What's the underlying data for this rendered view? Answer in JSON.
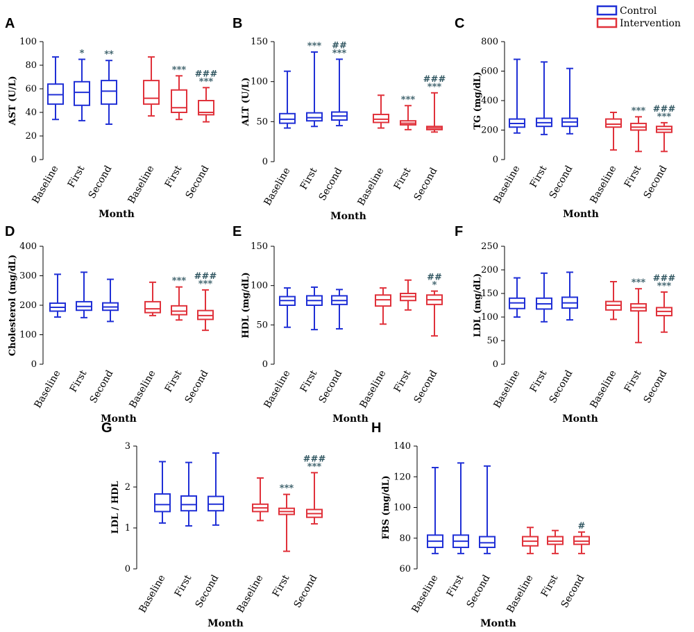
{
  "legend": {
    "entries": [
      {
        "label": "Control",
        "color": "#1f2fd6"
      },
      {
        "label": "Intervention",
        "color": "#e0313a"
      }
    ]
  },
  "chart_data": [
    {
      "type": "box",
      "panel": "A",
      "ylabel": "AST (U/L)",
      "xlabel": "Month",
      "ylim": [
        0,
        100
      ],
      "yticks": [
        0,
        20,
        40,
        60,
        80,
        100
      ],
      "categories": [
        "Baseline",
        "First",
        "Second",
        "Baseline",
        "First",
        "Second"
      ],
      "series": [
        {
          "name": "Control",
          "boxes": [
            {
              "min": 34,
              "q1": 47,
              "median": 55,
              "q3": 64,
              "max": 87,
              "sig": []
            },
            {
              "min": 33,
              "q1": 46,
              "median": 57,
              "q3": 66,
              "max": 85,
              "sig": [
                "*"
              ]
            },
            {
              "min": 30,
              "q1": 47,
              "median": 58,
              "q3": 67,
              "max": 84,
              "sig": [
                "**"
              ]
            }
          ]
        },
        {
          "name": "Intervention",
          "boxes": [
            {
              "min": 37,
              "q1": 47,
              "median": 52,
              "q3": 67,
              "max": 87,
              "sig": []
            },
            {
              "min": 34,
              "q1": 40,
              "median": 44,
              "q3": 59,
              "max": 71,
              "sig": [
                "***"
              ]
            },
            {
              "min": 32,
              "q1": 38,
              "median": 40,
              "q3": 50,
              "max": 61,
              "sig": [
                "###",
                "***"
              ]
            }
          ]
        }
      ]
    },
    {
      "type": "box",
      "panel": "B",
      "ylabel": "ALT (U/L)",
      "xlabel": "Month",
      "ylim": [
        0,
        150
      ],
      "yticks": [
        0,
        50,
        100,
        150
      ],
      "categories": [
        "Baseline",
        "First",
        "Second",
        "Baseline",
        "First",
        "Second"
      ],
      "series": [
        {
          "name": "Control",
          "boxes": [
            {
              "min": 42,
              "q1": 48,
              "median": 53,
              "q3": 60,
              "max": 113,
              "sig": []
            },
            {
              "min": 44,
              "q1": 51,
              "median": 55,
              "q3": 61,
              "max": 137,
              "sig": [
                "***"
              ]
            },
            {
              "min": 45,
              "q1": 52,
              "median": 57,
              "q3": 62,
              "max": 128,
              "sig": [
                "##",
                "***"
              ]
            }
          ]
        },
        {
          "name": "Intervention",
          "boxes": [
            {
              "min": 42,
              "q1": 49,
              "median": 53,
              "q3": 59,
              "max": 83,
              "sig": []
            },
            {
              "min": 40,
              "q1": 46,
              "median": 48,
              "q3": 51,
              "max": 70,
              "sig": [
                "***"
              ]
            },
            {
              "min": 37,
              "q1": 40,
              "median": 42,
              "q3": 44,
              "max": 86,
              "sig": [
                "###",
                "***"
              ]
            }
          ]
        }
      ]
    },
    {
      "type": "box",
      "panel": "C",
      "ylabel": "TG (mg/dL)",
      "xlabel": "Month",
      "ylim": [
        0,
        800
      ],
      "yticks": [
        0,
        200,
        400,
        600,
        800
      ],
      "categories": [
        "Baseline",
        "First",
        "Second",
        "Baseline",
        "First",
        "Second"
      ],
      "series": [
        {
          "name": "Control",
          "boxes": [
            {
              "min": 180,
              "q1": 220,
              "median": 245,
              "q3": 275,
              "max": 680,
              "sig": []
            },
            {
              "min": 170,
              "q1": 225,
              "median": 250,
              "q3": 280,
              "max": 662,
              "sig": []
            },
            {
              "min": 175,
              "q1": 225,
              "median": 255,
              "q3": 280,
              "max": 618,
              "sig": []
            }
          ]
        },
        {
          "name": "Intervention",
          "boxes": [
            {
              "min": 65,
              "q1": 220,
              "median": 240,
              "q3": 275,
              "max": 320,
              "sig": []
            },
            {
              "min": 55,
              "q1": 200,
              "median": 220,
              "q3": 245,
              "max": 290,
              "sig": [
                "***"
              ]
            },
            {
              "min": 55,
              "q1": 185,
              "median": 205,
              "q3": 225,
              "max": 250,
              "sig": [
                "###",
                "***"
              ]
            }
          ]
        }
      ]
    },
    {
      "type": "box",
      "panel": "D",
      "ylabel": "Cholesterol (mg/dL)",
      "xlabel": "Month",
      "ylim": [
        0,
        400
      ],
      "yticks": [
        0,
        100,
        200,
        300,
        400
      ],
      "categories": [
        "Baseline",
        "First",
        "Second",
        "Baseline",
        "First",
        "Second"
      ],
      "series": [
        {
          "name": "Control",
          "boxes": [
            {
              "min": 160,
              "q1": 180,
              "median": 193,
              "q3": 207,
              "max": 305,
              "sig": []
            },
            {
              "min": 158,
              "q1": 183,
              "median": 196,
              "q3": 212,
              "max": 312,
              "sig": []
            },
            {
              "min": 145,
              "q1": 183,
              "median": 194,
              "q3": 208,
              "max": 288,
              "sig": []
            }
          ]
        },
        {
          "name": "Intervention",
          "boxes": [
            {
              "min": 165,
              "q1": 175,
              "median": 188,
              "q3": 212,
              "max": 278,
              "sig": []
            },
            {
              "min": 150,
              "q1": 168,
              "median": 180,
              "q3": 198,
              "max": 262,
              "sig": [
                "***"
              ]
            },
            {
              "min": 115,
              "q1": 152,
              "median": 165,
              "q3": 182,
              "max": 252,
              "sig": [
                "###",
                "***"
              ]
            }
          ]
        }
      ]
    },
    {
      "type": "box",
      "panel": "E",
      "ylabel": "HDL (mg/dL)",
      "xlabel": "Month",
      "ylim": [
        0,
        150
      ],
      "yticks": [
        0,
        50,
        100,
        150
      ],
      "categories": [
        "Baseline",
        "First",
        "Second",
        "Baseline",
        "First",
        "Second"
      ],
      "series": [
        {
          "name": "Control",
          "boxes": [
            {
              "min": 47,
              "q1": 75,
              "median": 81,
              "q3": 86,
              "max": 97,
              "sig": []
            },
            {
              "min": 44,
              "q1": 75,
              "median": 81,
              "q3": 87,
              "max": 98,
              "sig": []
            },
            {
              "min": 45,
              "q1": 76,
              "median": 81,
              "q3": 87,
              "max": 95,
              "sig": []
            }
          ]
        },
        {
          "name": "Intervention",
          "boxes": [
            {
              "min": 51,
              "q1": 74,
              "median": 82,
              "q3": 88,
              "max": 97,
              "sig": []
            },
            {
              "min": 69,
              "q1": 81,
              "median": 86,
              "q3": 90,
              "max": 107,
              "sig": []
            },
            {
              "min": 36,
              "q1": 76,
              "median": 82,
              "q3": 88,
              "max": 93,
              "sig": [
                "##",
                "*"
              ]
            }
          ]
        }
      ]
    },
    {
      "type": "box",
      "panel": "F",
      "ylabel": "LDL (mg/dL)",
      "xlabel": "Month",
      "ylim": [
        0,
        250
      ],
      "yticks": [
        0,
        50,
        100,
        150,
        200,
        250
      ],
      "categories": [
        "Baseline",
        "First",
        "Second",
        "Baseline",
        "First",
        "Second"
      ],
      "series": [
        {
          "name": "Control",
          "boxes": [
            {
              "min": 100,
              "q1": 118,
              "median": 130,
              "q3": 140,
              "max": 183,
              "sig": []
            },
            {
              "min": 90,
              "q1": 117,
              "median": 128,
              "q3": 140,
              "max": 193,
              "sig": []
            },
            {
              "min": 94,
              "q1": 119,
              "median": 130,
              "q3": 142,
              "max": 195,
              "sig": []
            }
          ]
        },
        {
          "name": "Intervention",
          "boxes": [
            {
              "min": 95,
              "q1": 115,
              "median": 125,
              "q3": 133,
              "max": 175,
              "sig": []
            },
            {
              "min": 46,
              "q1": 113,
              "median": 120,
              "q3": 128,
              "max": 160,
              "sig": [
                "***"
              ]
            },
            {
              "min": 68,
              "q1": 103,
              "median": 112,
              "q3": 120,
              "max": 153,
              "sig": [
                "###",
                "***"
              ]
            }
          ]
        }
      ]
    },
    {
      "type": "box",
      "panel": "G",
      "ylabel": "LDL / HDL",
      "xlabel": "Month",
      "ylim": [
        0,
        3
      ],
      "yticks": [
        0,
        1,
        2,
        3
      ],
      "categories": [
        "Baseline",
        "First",
        "Second",
        "Baseline",
        "First",
        "Second"
      ],
      "series": [
        {
          "name": "Control",
          "boxes": [
            {
              "min": 1.12,
              "q1": 1.4,
              "median": 1.57,
              "q3": 1.83,
              "max": 2.62,
              "sig": []
            },
            {
              "min": 1.05,
              "q1": 1.42,
              "median": 1.57,
              "q3": 1.78,
              "max": 2.6,
              "sig": []
            },
            {
              "min": 1.07,
              "q1": 1.42,
              "median": 1.58,
              "q3": 1.77,
              "max": 2.83,
              "sig": []
            }
          ]
        },
        {
          "name": "Intervention",
          "boxes": [
            {
              "min": 1.18,
              "q1": 1.4,
              "median": 1.49,
              "q3": 1.58,
              "max": 2.22,
              "sig": []
            },
            {
              "min": 0.43,
              "q1": 1.33,
              "median": 1.4,
              "q3": 1.48,
              "max": 1.82,
              "sig": [
                "***"
              ]
            },
            {
              "min": 1.1,
              "q1": 1.26,
              "median": 1.35,
              "q3": 1.45,
              "max": 2.35,
              "sig": [
                "###",
                "***"
              ]
            }
          ]
        }
      ]
    },
    {
      "type": "box",
      "panel": "H",
      "ylabel": "FBS (mg/dL)",
      "xlabel": "Month",
      "ylim": [
        60,
        140
      ],
      "yticks": [
        60,
        80,
        100,
        120,
        140
      ],
      "categories": [
        "Baseline",
        "First",
        "Second",
        "Baseline",
        "First",
        "Second"
      ],
      "series": [
        {
          "name": "Control",
          "boxes": [
            {
              "min": 70,
              "q1": 74,
              "median": 78,
              "q3": 82,
              "max": 126,
              "sig": []
            },
            {
              "min": 70,
              "q1": 74,
              "median": 78,
              "q3": 82,
              "max": 129,
              "sig": []
            },
            {
              "min": 70,
              "q1": 74,
              "median": 77,
              "q3": 81,
              "max": 127,
              "sig": []
            }
          ]
        },
        {
          "name": "Intervention",
          "boxes": [
            {
              "min": 70,
              "q1": 75,
              "median": 78,
              "q3": 81,
              "max": 87,
              "sig": []
            },
            {
              "min": 70,
              "q1": 76,
              "median": 78,
              "q3": 81,
              "max": 85,
              "sig": []
            },
            {
              "min": 70,
              "q1": 76,
              "median": 78,
              "q3": 81,
              "max": 84,
              "sig": [
                "#"
              ]
            }
          ]
        }
      ]
    }
  ]
}
